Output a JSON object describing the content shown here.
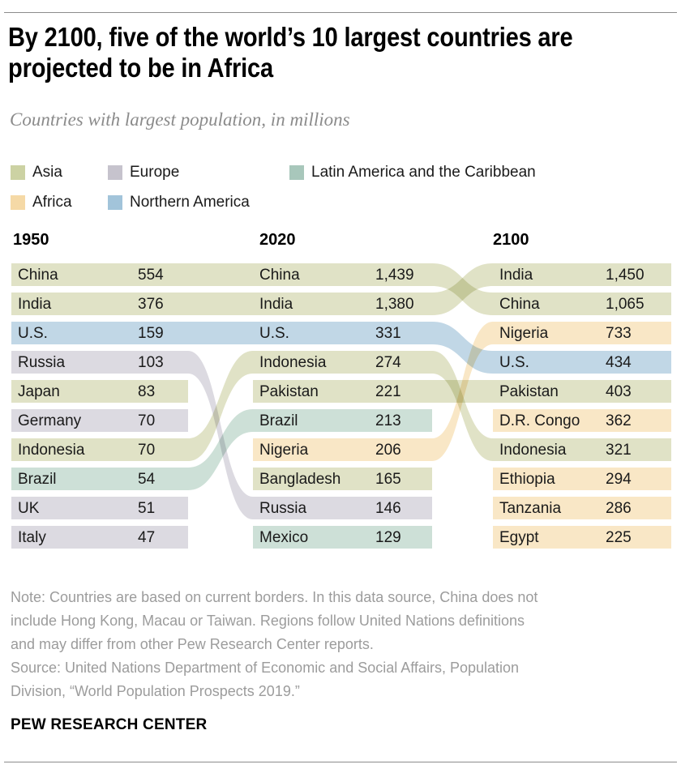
{
  "title_lines": [
    "By 2100, five of the world’s 10 largest countries are",
    "projected to be in Africa"
  ],
  "subtitle": "Countries with largest population, in millions",
  "legend": [
    {
      "label": "Asia",
      "region": "asia"
    },
    {
      "label": "Europe",
      "region": "europe"
    },
    {
      "label": "Latin America and the Caribbean",
      "region": "latam"
    },
    {
      "label": "Africa",
      "region": "africa"
    },
    {
      "label": "Northern America",
      "region": "northern_america"
    }
  ],
  "region_colors": {
    "asia": {
      "bar": "#e0e2c6",
      "legend": "#ccd2a3"
    },
    "europe": {
      "bar": "#dcdae1",
      "legend": "#c6c3cd"
    },
    "latam": {
      "bar": "#cde0d7",
      "legend": "#a8c7bb"
    },
    "africa": {
      "bar": "#f9e7c6",
      "legend": "#f5d9a6"
    },
    "northern_america": {
      "bar": "#c1d7e6",
      "legend": "#a2c4da"
    }
  },
  "chart_data": {
    "type": "table",
    "title": "Countries with largest population, in millions",
    "columns": [
      {
        "year": "1950",
        "rows": [
          {
            "country": "China",
            "value": "554",
            "region": "asia"
          },
          {
            "country": "India",
            "value": "376",
            "region": "asia"
          },
          {
            "country": "U.S.",
            "value": "159",
            "region": "northern_america"
          },
          {
            "country": "Russia",
            "value": "103",
            "region": "europe"
          },
          {
            "country": "Japan",
            "value": "83",
            "region": "asia"
          },
          {
            "country": "Germany",
            "value": "70",
            "region": "europe"
          },
          {
            "country": "Indonesia",
            "value": "70",
            "region": "asia"
          },
          {
            "country": "Brazil",
            "value": "54",
            "region": "latam"
          },
          {
            "country": "UK",
            "value": "51",
            "region": "europe"
          },
          {
            "country": "Italy",
            "value": "47",
            "region": "europe"
          }
        ]
      },
      {
        "year": "2020",
        "rows": [
          {
            "country": "China",
            "value": "1,439",
            "region": "asia"
          },
          {
            "country": "India",
            "value": "1,380",
            "region": "asia"
          },
          {
            "country": "U.S.",
            "value": "331",
            "region": "northern_america"
          },
          {
            "country": "Indonesia",
            "value": "274",
            "region": "asia"
          },
          {
            "country": "Pakistan",
            "value": "221",
            "region": "asia"
          },
          {
            "country": "Brazil",
            "value": "213",
            "region": "latam"
          },
          {
            "country": "Nigeria",
            "value": "206",
            "region": "africa"
          },
          {
            "country": "Bangladesh",
            "value": "165",
            "region": "asia"
          },
          {
            "country": "Russia",
            "value": "146",
            "region": "europe"
          },
          {
            "country": "Mexico",
            "value": "129",
            "region": "latam"
          }
        ]
      },
      {
        "year": "2100",
        "rows": [
          {
            "country": "India",
            "value": "1,450",
            "region": "asia"
          },
          {
            "country": "China",
            "value": "1,065",
            "region": "asia"
          },
          {
            "country": "Nigeria",
            "value": "733",
            "region": "africa"
          },
          {
            "country": "U.S.",
            "value": "434",
            "region": "northern_america"
          },
          {
            "country": "Pakistan",
            "value": "403",
            "region": "asia"
          },
          {
            "country": "D.R. Congo",
            "value": "362",
            "region": "africa"
          },
          {
            "country": "Indonesia",
            "value": "321",
            "region": "asia"
          },
          {
            "country": "Ethiopia",
            "value": "294",
            "region": "africa"
          },
          {
            "country": "Tanzania",
            "value": "286",
            "region": "africa"
          },
          {
            "country": "Egypt",
            "value": "225",
            "region": "africa"
          }
        ]
      }
    ],
    "links": [
      {
        "gap": 0,
        "country": "China",
        "from": 0,
        "to": 0,
        "region": "asia"
      },
      {
        "gap": 0,
        "country": "India",
        "from": 1,
        "to": 1,
        "region": "asia"
      },
      {
        "gap": 0,
        "country": "U.S.",
        "from": 2,
        "to": 2,
        "region": "northern_america"
      },
      {
        "gap": 0,
        "country": "Russia",
        "from": 3,
        "to": 8,
        "region": "europe"
      },
      {
        "gap": 0,
        "country": "Indonesia",
        "from": 6,
        "to": 3,
        "region": "asia"
      },
      {
        "gap": 0,
        "country": "Brazil",
        "from": 7,
        "to": 5,
        "region": "latam"
      },
      {
        "gap": 1,
        "country": "China",
        "from": 0,
        "to": 1,
        "region": "asia"
      },
      {
        "gap": 1,
        "country": "India",
        "from": 1,
        "to": 0,
        "region": "asia"
      },
      {
        "gap": 1,
        "country": "U.S.",
        "from": 2,
        "to": 3,
        "region": "northern_america"
      },
      {
        "gap": 1,
        "country": "Indonesia",
        "from": 3,
        "to": 6,
        "region": "asia"
      },
      {
        "gap": 1,
        "country": "Pakistan",
        "from": 4,
        "to": 4,
        "region": "asia"
      },
      {
        "gap": 1,
        "country": "Nigeria",
        "from": 6,
        "to": 2,
        "region": "africa"
      }
    ]
  },
  "note_lines": [
    "Note: Countries are based on current borders. In this data source, China does not",
    "include Hong Kong, Macau or Taiwan. Regions follow United Nations definitions",
    "and may differ from other Pew Research Center reports."
  ],
  "source_lines": [
    "Source: United Nations Department of Economic and Social Affairs, Population",
    "Division, “World Population Prospects 2019.”"
  ],
  "footer": "PEW RESEARCH CENTER"
}
